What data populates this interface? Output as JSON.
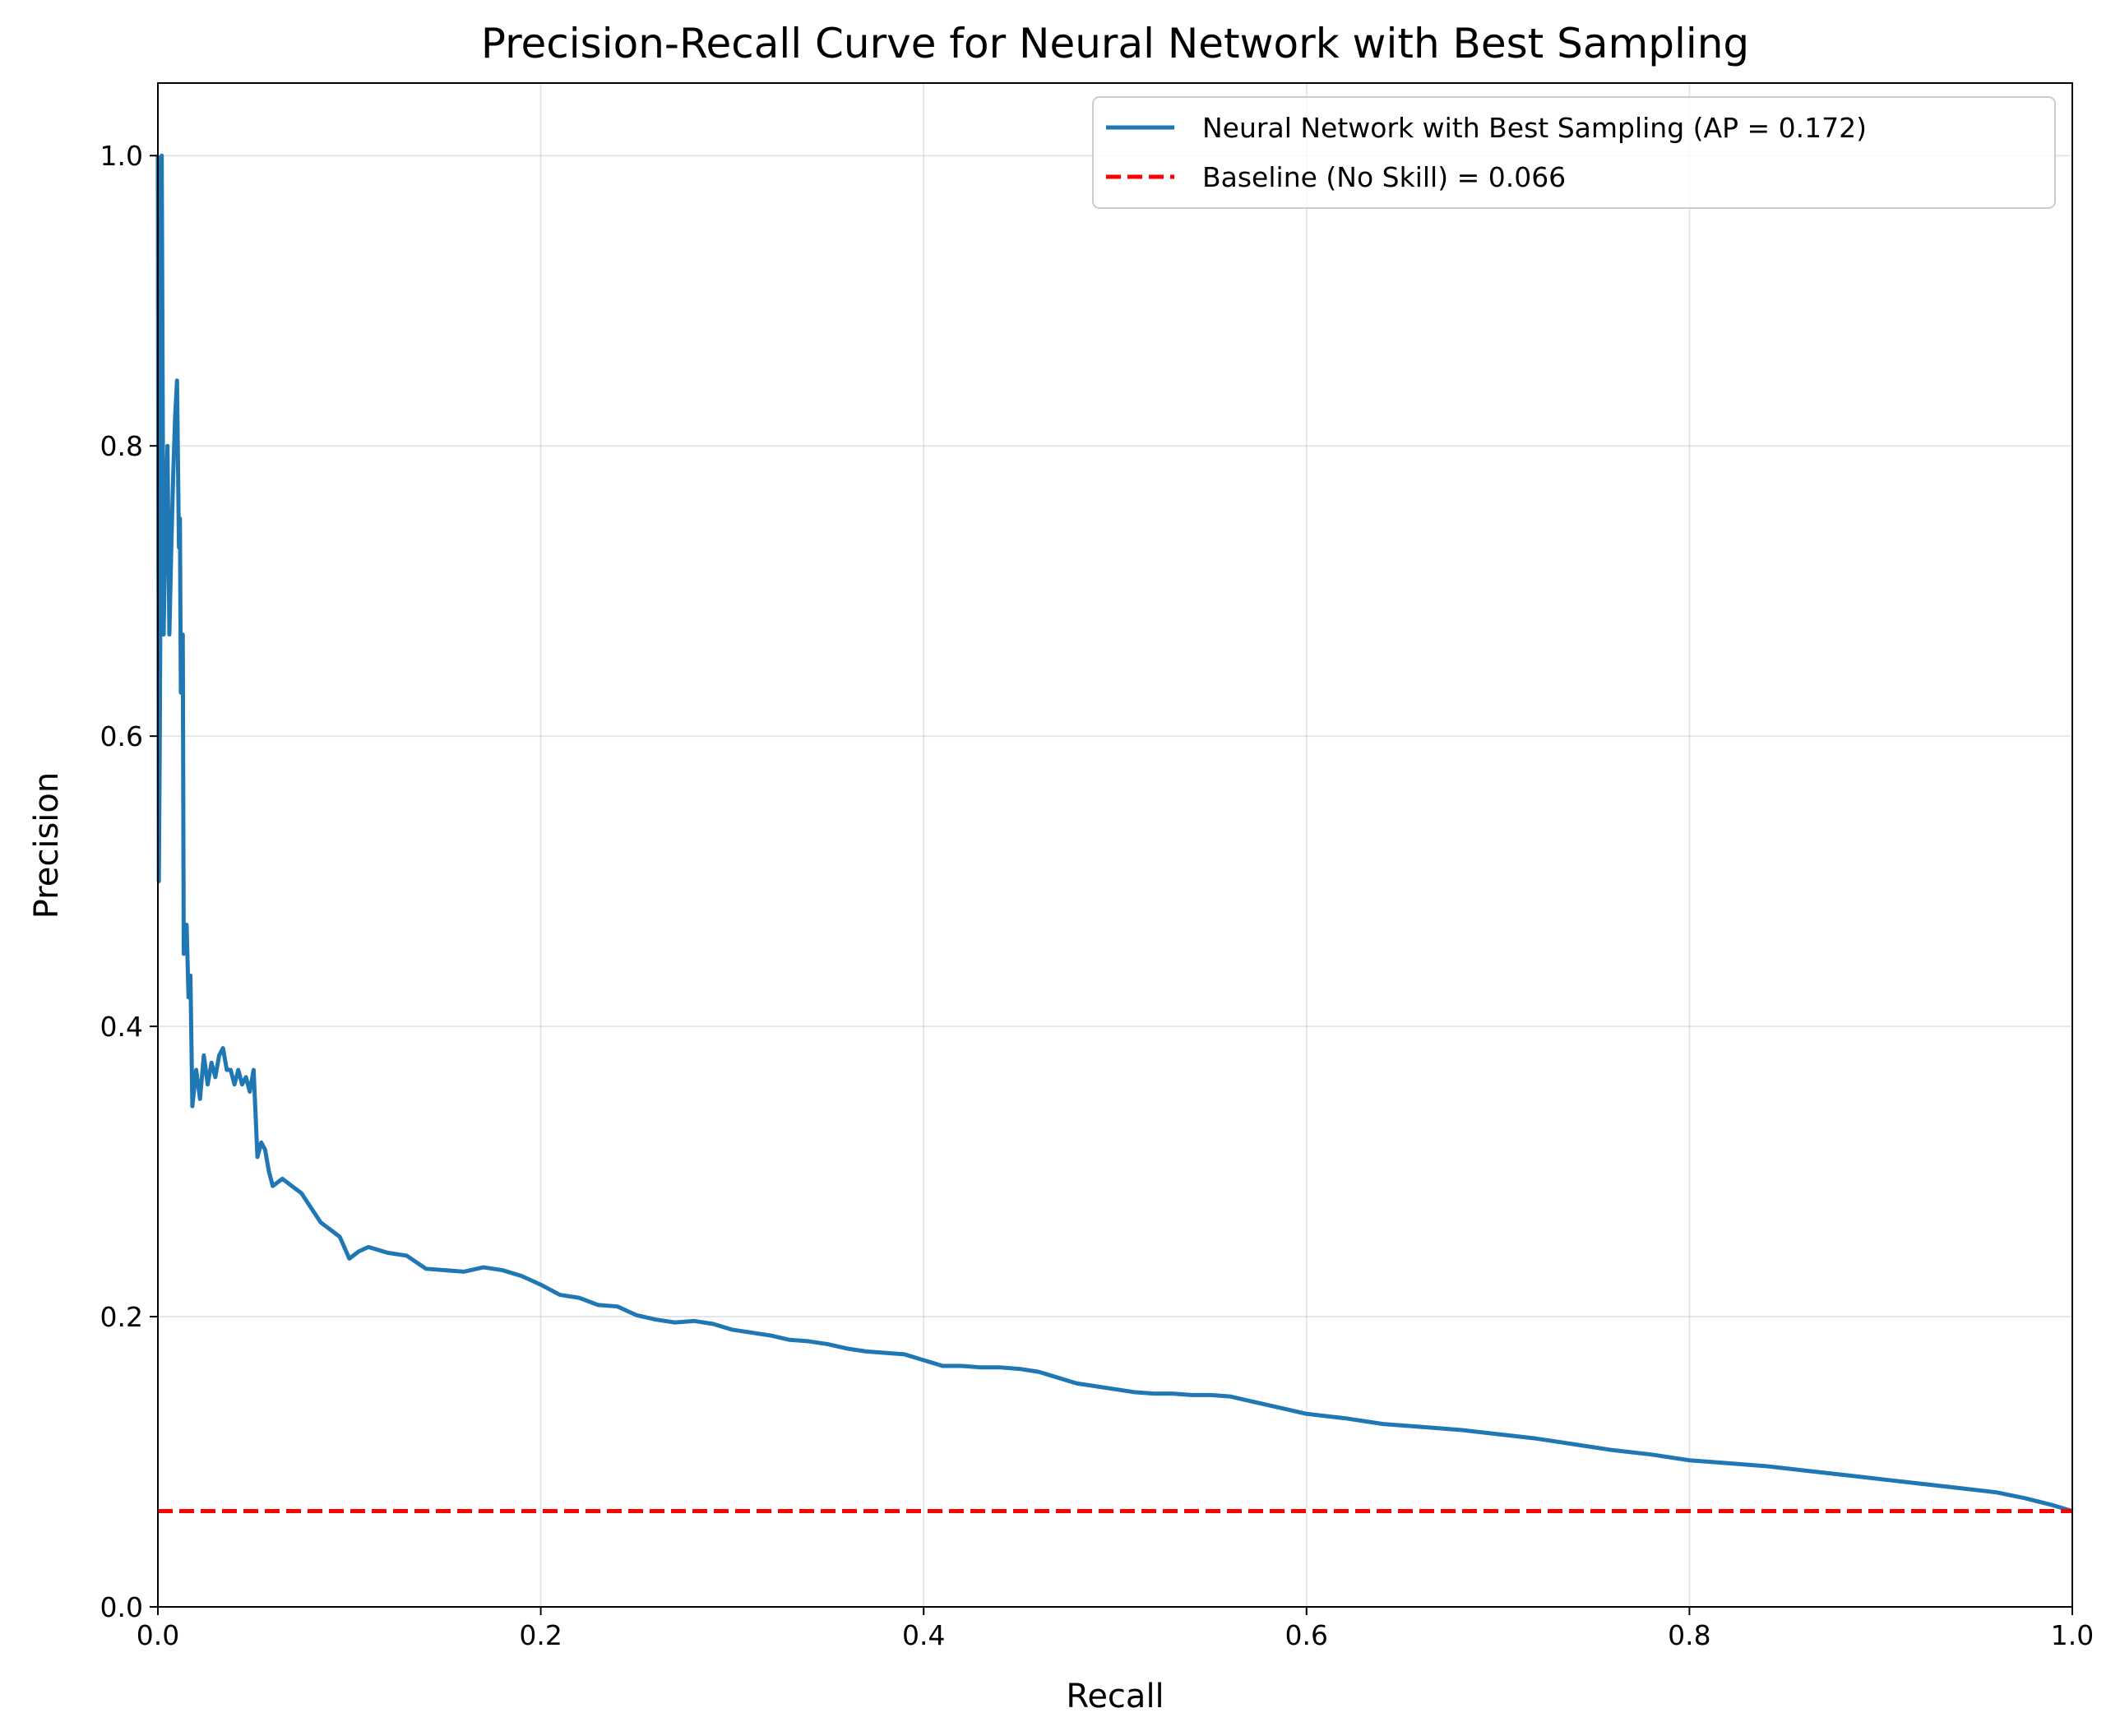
{
  "chart_data": {
    "type": "line",
    "title": "Precision-Recall Curve for Neural Network with Best Sampling",
    "xlabel": "Recall",
    "ylabel": "Precision",
    "xlim": [
      0.0,
      1.0
    ],
    "ylim": [
      0.0,
      1.05
    ],
    "xticks": [
      0.0,
      0.2,
      0.4,
      0.6,
      0.8,
      1.0
    ],
    "xtick_labels": [
      "0.0",
      "0.2",
      "0.4",
      "0.6",
      "0.8",
      "1.0"
    ],
    "yticks": [
      0.0,
      0.2,
      0.4,
      0.6,
      0.8,
      1.0
    ],
    "ytick_labels": [
      "0.0",
      "0.2",
      "0.4",
      "0.6",
      "0.8",
      "1.0"
    ],
    "grid": true,
    "legend_position": "top-right",
    "series": [
      {
        "name": "Neural Network with Best Sampling (AP = 0.172)",
        "color": "#1f77b4",
        "style": "solid",
        "points": [
          [
            0.0,
            1.0
          ],
          [
            0.0005,
            0.5
          ],
          [
            0.001,
            0.6
          ],
          [
            0.0015,
            0.75
          ],
          [
            0.002,
            1.0
          ],
          [
            0.003,
            0.67
          ],
          [
            0.004,
            0.75
          ],
          [
            0.005,
            0.8
          ],
          [
            0.006,
            0.67
          ],
          [
            0.007,
            0.73
          ],
          [
            0.008,
            0.78
          ],
          [
            0.009,
            0.82
          ],
          [
            0.01,
            0.845
          ],
          [
            0.011,
            0.73
          ],
          [
            0.0115,
            0.75
          ],
          [
            0.012,
            0.63
          ],
          [
            0.013,
            0.67
          ],
          [
            0.0135,
            0.45
          ],
          [
            0.015,
            0.47
          ],
          [
            0.016,
            0.42
          ],
          [
            0.017,
            0.435
          ],
          [
            0.018,
            0.345
          ],
          [
            0.02,
            0.37
          ],
          [
            0.022,
            0.35
          ],
          [
            0.024,
            0.38
          ],
          [
            0.026,
            0.36
          ],
          [
            0.028,
            0.375
          ],
          [
            0.03,
            0.365
          ],
          [
            0.032,
            0.38
          ],
          [
            0.034,
            0.385
          ],
          [
            0.036,
            0.37
          ],
          [
            0.038,
            0.37
          ],
          [
            0.04,
            0.36
          ],
          [
            0.042,
            0.37
          ],
          [
            0.044,
            0.36
          ],
          [
            0.046,
            0.365
          ],
          [
            0.048,
            0.355
          ],
          [
            0.05,
            0.37
          ],
          [
            0.052,
            0.31
          ],
          [
            0.054,
            0.32
          ],
          [
            0.056,
            0.315
          ],
          [
            0.058,
            0.3
          ],
          [
            0.06,
            0.29
          ],
          [
            0.065,
            0.295
          ],
          [
            0.07,
            0.29
          ],
          [
            0.075,
            0.285
          ],
          [
            0.08,
            0.275
          ],
          [
            0.085,
            0.265
          ],
          [
            0.09,
            0.26
          ],
          [
            0.095,
            0.255
          ],
          [
            0.1,
            0.24
          ],
          [
            0.105,
            0.245
          ],
          [
            0.11,
            0.248
          ],
          [
            0.12,
            0.244
          ],
          [
            0.13,
            0.242
          ],
          [
            0.14,
            0.233
          ],
          [
            0.15,
            0.232
          ],
          [
            0.16,
            0.231
          ],
          [
            0.17,
            0.234
          ],
          [
            0.18,
            0.232
          ],
          [
            0.19,
            0.228
          ],
          [
            0.2,
            0.222
          ],
          [
            0.21,
            0.215
          ],
          [
            0.22,
            0.213
          ],
          [
            0.23,
            0.208
          ],
          [
            0.24,
            0.207
          ],
          [
            0.25,
            0.201
          ],
          [
            0.26,
            0.198
          ],
          [
            0.27,
            0.196
          ],
          [
            0.28,
            0.197
          ],
          [
            0.29,
            0.195
          ],
          [
            0.3,
            0.191
          ],
          [
            0.31,
            0.189
          ],
          [
            0.32,
            0.187
          ],
          [
            0.33,
            0.184
          ],
          [
            0.34,
            0.183
          ],
          [
            0.35,
            0.181
          ],
          [
            0.36,
            0.178
          ],
          [
            0.37,
            0.176
          ],
          [
            0.38,
            0.175
          ],
          [
            0.39,
            0.174
          ],
          [
            0.4,
            0.17
          ],
          [
            0.41,
            0.166
          ],
          [
            0.42,
            0.166
          ],
          [
            0.43,
            0.165
          ],
          [
            0.44,
            0.165
          ],
          [
            0.45,
            0.164
          ],
          [
            0.46,
            0.162
          ],
          [
            0.47,
            0.158
          ],
          [
            0.48,
            0.154
          ],
          [
            0.49,
            0.152
          ],
          [
            0.5,
            0.15
          ],
          [
            0.51,
            0.148
          ],
          [
            0.52,
            0.147
          ],
          [
            0.53,
            0.147
          ],
          [
            0.54,
            0.146
          ],
          [
            0.55,
            0.146
          ],
          [
            0.56,
            0.145
          ],
          [
            0.57,
            0.142
          ],
          [
            0.58,
            0.139
          ],
          [
            0.59,
            0.136
          ],
          [
            0.6,
            0.133
          ],
          [
            0.62,
            0.13
          ],
          [
            0.64,
            0.126
          ],
          [
            0.66,
            0.124
          ],
          [
            0.68,
            0.122
          ],
          [
            0.7,
            0.119
          ],
          [
            0.72,
            0.116
          ],
          [
            0.74,
            0.112
          ],
          [
            0.76,
            0.108
          ],
          [
            0.78,
            0.105
          ],
          [
            0.8,
            0.101
          ],
          [
            0.82,
            0.099
          ],
          [
            0.84,
            0.097
          ],
          [
            0.86,
            0.094
          ],
          [
            0.88,
            0.091
          ],
          [
            0.9,
            0.088
          ],
          [
            0.92,
            0.085
          ],
          [
            0.94,
            0.082
          ],
          [
            0.96,
            0.079
          ],
          [
            0.975,
            0.075
          ],
          [
            0.99,
            0.07
          ],
          [
            1.0,
            0.066
          ]
        ]
      },
      {
        "name": "Baseline (No Skill) = 0.066",
        "color": "#ff0000",
        "style": "dashed",
        "points": [
          [
            0.0,
            0.066
          ],
          [
            1.0,
            0.066
          ]
        ]
      }
    ]
  }
}
